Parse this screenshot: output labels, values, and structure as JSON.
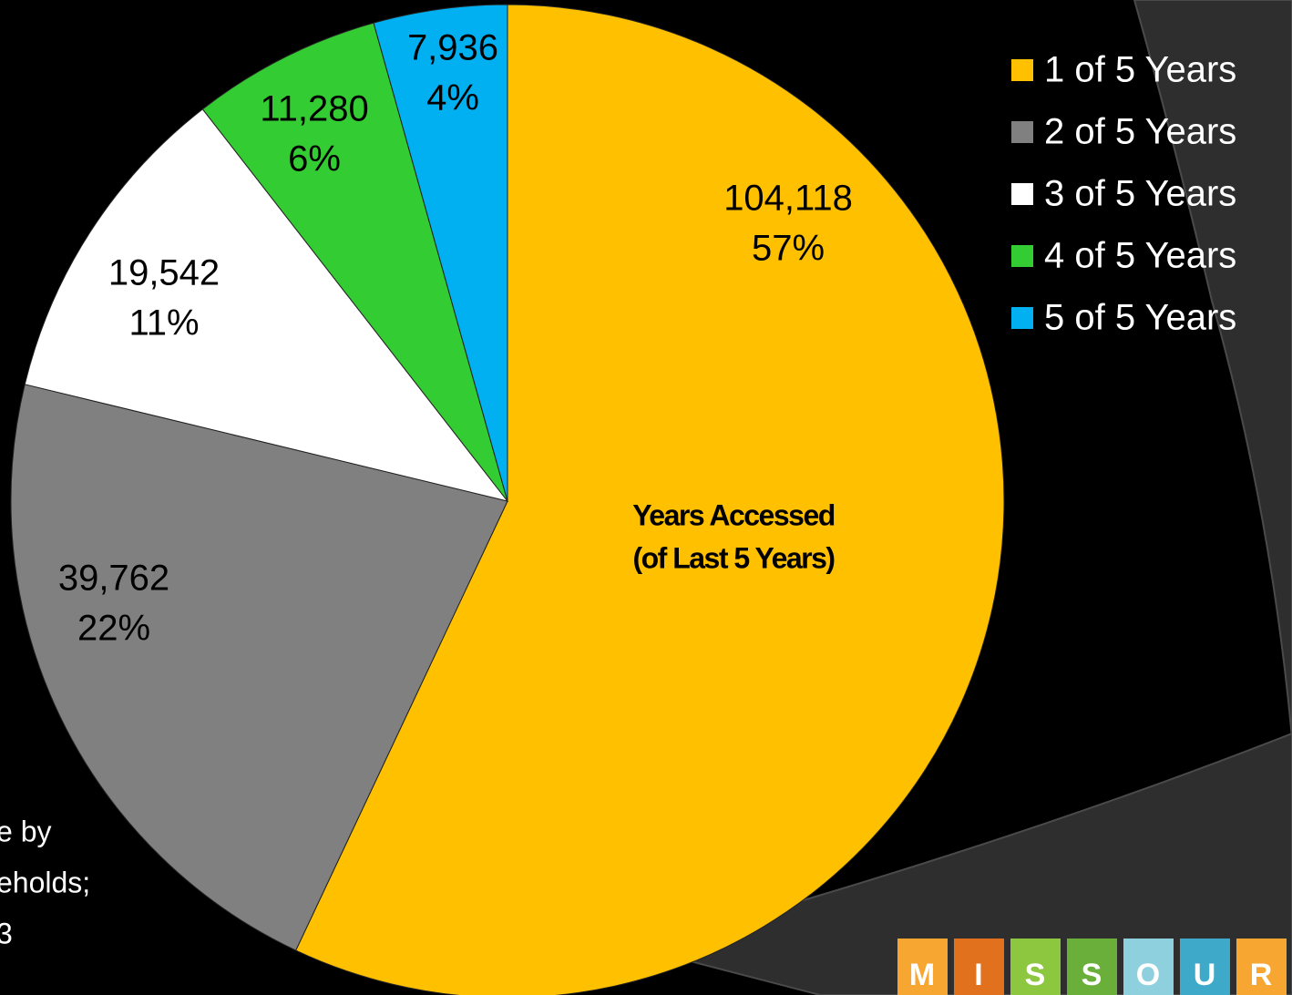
{
  "chart_data": {
    "type": "pie",
    "categories": [
      "1 of 5 Years",
      "2 of 5 Years",
      "3 of 5 Years",
      "4 of 5 Years",
      "5 of 5 Years"
    ],
    "values": [
      104118,
      39762,
      19542,
      11280,
      7936
    ],
    "value_labels": [
      "104,118",
      "39,762",
      "19,542",
      "11,280",
      "7,936"
    ],
    "percents": [
      57,
      22,
      11,
      6,
      4
    ],
    "percent_labels": [
      "57%",
      "22%",
      "11%",
      "6%",
      "4%"
    ],
    "colors": [
      "#FFC000",
      "#808080",
      "#FFFFFF",
      "#33CC33",
      "#00B0F0"
    ],
    "title": [
      "Years Accessed",
      "(of Last 5 Years)"
    ],
    "legend": "right"
  },
  "annotations": [
    "e by",
    "eholds;",
    "3"
  ],
  "logo": [
    "M",
    "I",
    "S",
    "S",
    "O",
    "U",
    "R"
  ]
}
